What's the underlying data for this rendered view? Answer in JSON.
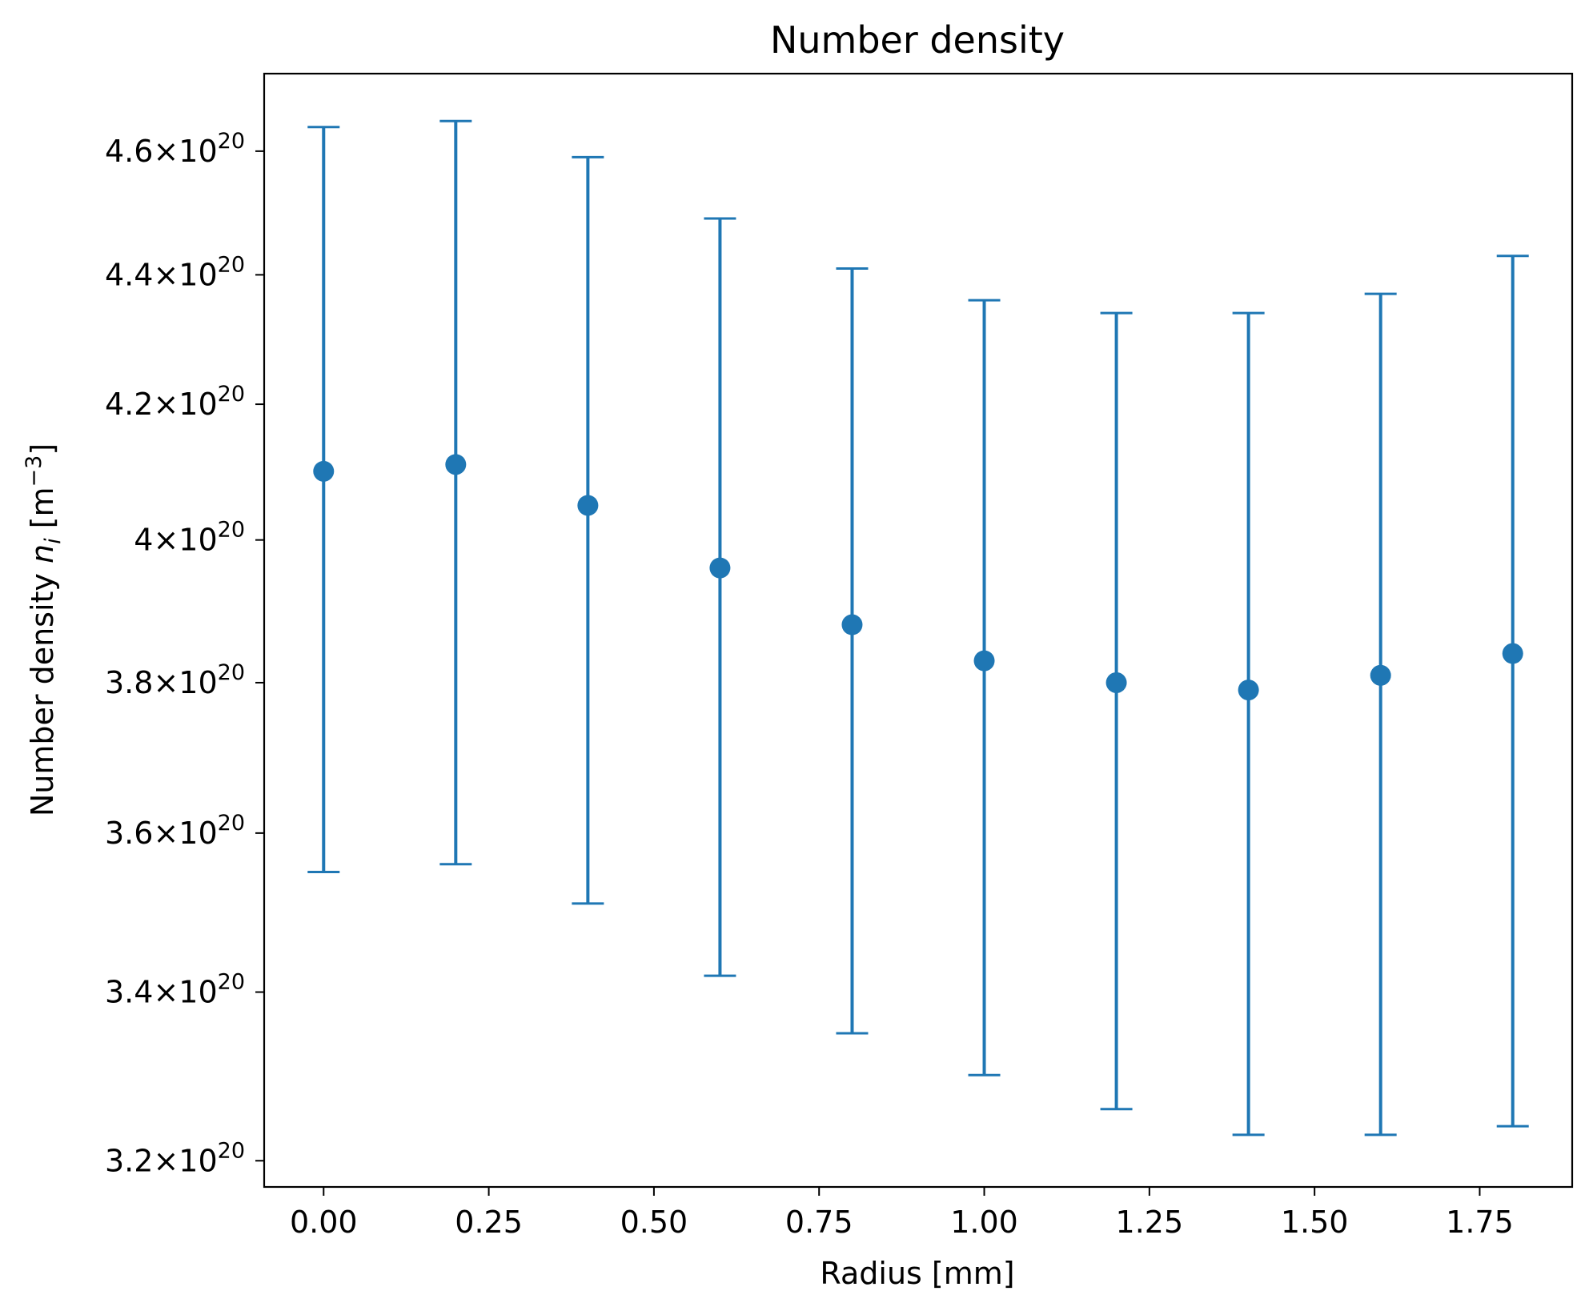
{
  "chart_data": {
    "type": "scatter",
    "title": "Number density",
    "xlabel": "Radius [mm]",
    "ylabel": {
      "prefix": "Number density ",
      "symbol": "n",
      "subscript": "i",
      "unit_open": " [m",
      "unit_exp": "−3",
      "unit_close": "]"
    },
    "xscale": "linear",
    "yscale": "log",
    "xlim": [
      -0.09,
      1.89
    ],
    "ylim": [
      3.17e+20,
      4.73e+20
    ],
    "xticks": [
      {
        "value": 0.0,
        "label": "0.00"
      },
      {
        "value": 0.25,
        "label": "0.25"
      },
      {
        "value": 0.5,
        "label": "0.50"
      },
      {
        "value": 0.75,
        "label": "0.75"
      },
      {
        "value": 1.0,
        "label": "1.00"
      },
      {
        "value": 1.25,
        "label": "1.25"
      },
      {
        "value": 1.5,
        "label": "1.50"
      },
      {
        "value": 1.75,
        "label": "1.75"
      }
    ],
    "yticks": [
      {
        "value": 3.2e+20,
        "mantissa": "3.2",
        "times": "×",
        "base": "10",
        "exp": "20"
      },
      {
        "value": 3.4e+20,
        "mantissa": "3.4",
        "times": "×",
        "base": "10",
        "exp": "20"
      },
      {
        "value": 3.6e+20,
        "mantissa": "3.6",
        "times": "×",
        "base": "10",
        "exp": "20"
      },
      {
        "value": 3.8e+20,
        "mantissa": "3.8",
        "times": "×",
        "base": "10",
        "exp": "20"
      },
      {
        "value": 4e+20,
        "mantissa": "4",
        "times": "×",
        "base": "10",
        "exp": "20"
      },
      {
        "value": 4.2e+20,
        "mantissa": "4.2",
        "times": "×",
        "base": "10",
        "exp": "20"
      },
      {
        "value": 4.4e+20,
        "mantissa": "4.4",
        "times": "×",
        "base": "10",
        "exp": "20"
      },
      {
        "value": 4.6e+20,
        "mantissa": "4.6",
        "times": "×",
        "base": "10",
        "exp": "20"
      }
    ],
    "series": [
      {
        "color": "#1f77b4",
        "marker": "circle",
        "errorbars": true,
        "x": [
          0.0,
          0.2,
          0.4,
          0.6,
          0.8,
          1.0,
          1.2,
          1.4,
          1.6,
          1.8
        ],
        "y": [
          4.1e+20,
          4.11e+20,
          4.05e+20,
          3.96e+20,
          3.88e+20,
          3.83e+20,
          3.8e+20,
          3.79e+20,
          3.81e+20,
          3.84e+20
        ],
        "y_lower": [
          3.55e+20,
          3.56e+20,
          3.51e+20,
          3.42e+20,
          3.35e+20,
          3.3e+20,
          3.26e+20,
          3.23e+20,
          3.23e+20,
          3.24e+20
        ],
        "y_upper": [
          4.64e+20,
          4.65e+20,
          4.59e+20,
          4.49e+20,
          4.41e+20,
          4.36e+20,
          4.34e+20,
          4.34e+20,
          4.37e+20,
          4.43e+20
        ]
      }
    ],
    "grid": false,
    "legend": false
  }
}
